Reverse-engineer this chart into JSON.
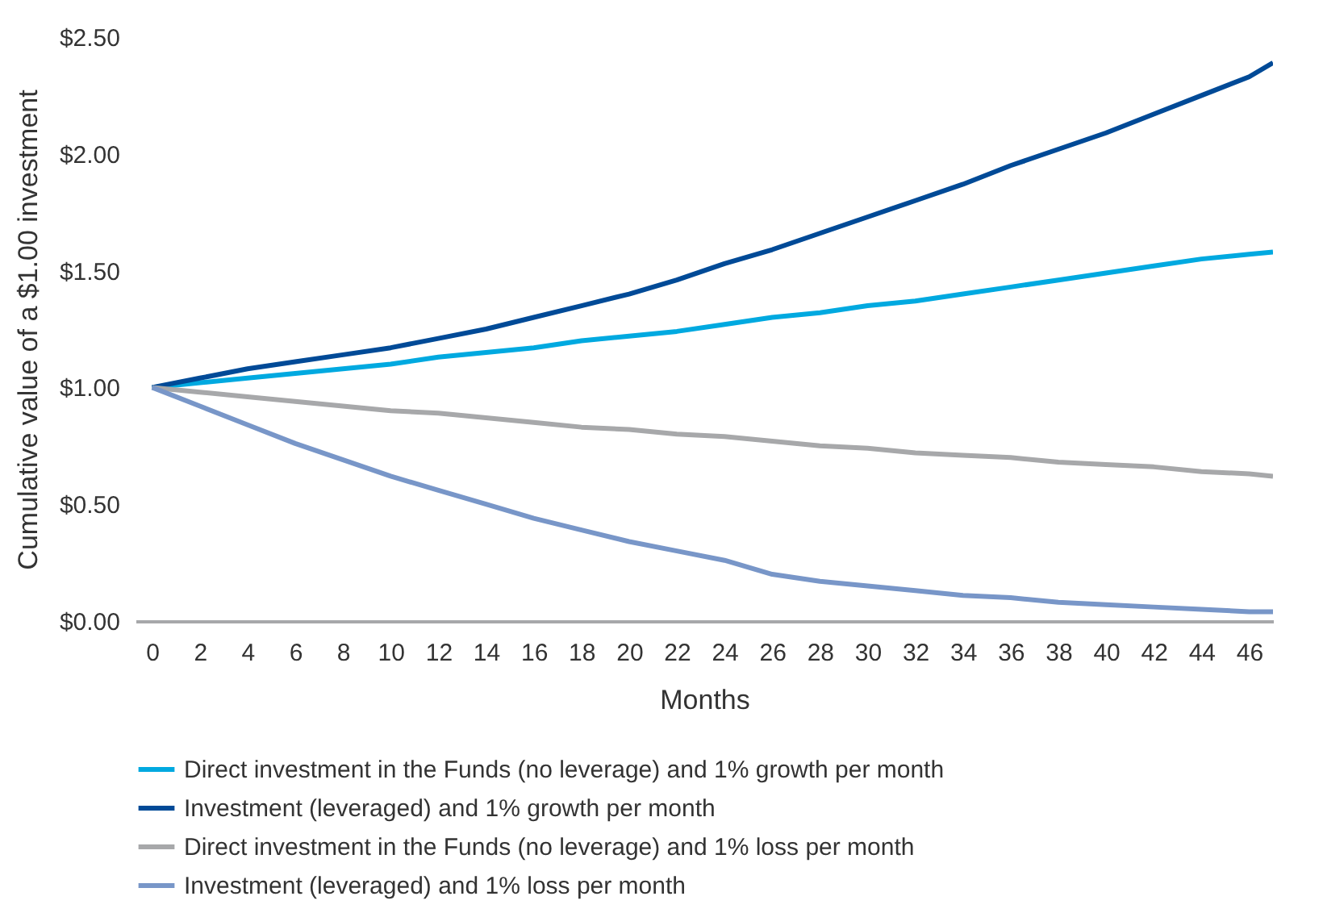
{
  "chart_data": {
    "type": "line",
    "xlabel": "Months",
    "ylabel": "Cumulative value of a $1.00 investment",
    "x": [
      0,
      2,
      4,
      6,
      8,
      10,
      12,
      14,
      16,
      18,
      20,
      22,
      24,
      26,
      28,
      30,
      32,
      34,
      36,
      38,
      40,
      42,
      44,
      46,
      47
    ],
    "xlim": [
      -0.7,
      47
    ],
    "xticks": [
      0,
      2,
      4,
      6,
      8,
      10,
      12,
      14,
      16,
      18,
      20,
      22,
      24,
      26,
      28,
      30,
      32,
      34,
      36,
      38,
      40,
      42,
      44,
      46
    ],
    "ylim": [
      0,
      2.5
    ],
    "yticks": [
      {
        "value": 0,
        "label": "$0.00"
      },
      {
        "value": 0.5,
        "label": "$0.50"
      },
      {
        "value": 1,
        "label": "$1.00"
      },
      {
        "value": 1.5,
        "label": "$1.50"
      },
      {
        "value": 2,
        "label": "$2.00"
      },
      {
        "value": 2.5,
        "label": "$2.50"
      }
    ],
    "grid": false,
    "legend": "bottom",
    "marker": "none",
    "line_style": "solid",
    "series": [
      {
        "name": "Direct investment in the Funds (no leverage) and 1% growth per month",
        "color": "#00a9e0",
        "values": [
          1.0,
          1.02,
          1.04,
          1.06,
          1.08,
          1.1,
          1.13,
          1.15,
          1.17,
          1.2,
          1.22,
          1.24,
          1.27,
          1.3,
          1.32,
          1.35,
          1.37,
          1.4,
          1.43,
          1.46,
          1.49,
          1.52,
          1.55,
          1.57,
          1.58
        ]
      },
      {
        "name": "Investment (leveraged) and 1% growth per month",
        "color": "#004a97",
        "values": [
          1.0,
          1.04,
          1.08,
          1.11,
          1.14,
          1.17,
          1.21,
          1.25,
          1.3,
          1.35,
          1.4,
          1.46,
          1.53,
          1.59,
          1.66,
          1.73,
          1.8,
          1.87,
          1.95,
          2.02,
          2.09,
          2.17,
          2.25,
          2.33,
          2.39
        ]
      },
      {
        "name": "Direct investment in the Funds (no leverage) and 1% loss per month",
        "color": "#a7a8aa",
        "values": [
          1.0,
          0.98,
          0.96,
          0.94,
          0.92,
          0.9,
          0.89,
          0.87,
          0.85,
          0.83,
          0.82,
          0.8,
          0.79,
          0.77,
          0.75,
          0.74,
          0.72,
          0.71,
          0.7,
          0.68,
          0.67,
          0.66,
          0.64,
          0.63,
          0.62
        ]
      },
      {
        "name": "Investment (leveraged) and 1% loss per month",
        "color": "#7896c8",
        "values": [
          1.0,
          0.92,
          0.84,
          0.76,
          0.69,
          0.62,
          0.56,
          0.5,
          0.44,
          0.39,
          0.34,
          0.3,
          0.26,
          0.2,
          0.17,
          0.15,
          0.13,
          0.11,
          0.1,
          0.08,
          0.07,
          0.06,
          0.05,
          0.04,
          0.04
        ]
      }
    ]
  }
}
